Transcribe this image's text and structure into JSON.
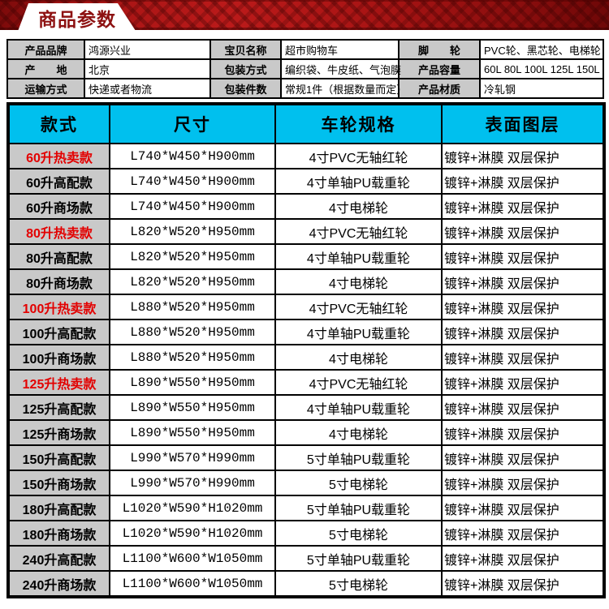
{
  "banner": {
    "title": "商品参数"
  },
  "info_table": {
    "rows": [
      [
        {
          "label": "产品品牌",
          "value": "鸿源兴业"
        },
        {
          "label": "宝贝名称",
          "value": "超市购物车"
        },
        {
          "label": "脚　　轮",
          "value": "PVC轮、黑芯轮、电梯轮"
        }
      ],
      [
        {
          "label": "产　　地",
          "value": "北京"
        },
        {
          "label": "包装方式",
          "value": "编织袋、牛皮纸、气泡膜"
        },
        {
          "label": "产品容量",
          "value": "60L 80L 100L 125L 150L"
        }
      ],
      [
        {
          "label": "运输方式",
          "value": "快递或者物流"
        },
        {
          "label": "包装件数",
          "value": "常规1件（根据数量而定）"
        },
        {
          "label": "产品材质",
          "value": "冷轧钢"
        }
      ]
    ]
  },
  "spec_table": {
    "headers": [
      "款式",
      "尺寸",
      "车轮规格",
      "表面图层"
    ],
    "rows": [
      {
        "style": "60升热卖款",
        "hot": true,
        "size": "L740*W450*H900mm",
        "wheel": "4寸PVC无轴红轮",
        "surface": "镀锌+淋膜 双层保护"
      },
      {
        "style": "60升高配款",
        "hot": false,
        "size": "L740*W450*H900mm",
        "wheel": "4寸单轴PU载重轮",
        "surface": "镀锌+淋膜 双层保护"
      },
      {
        "style": "60升商场款",
        "hot": false,
        "size": "L740*W450*H900mm",
        "wheel": "4寸电梯轮",
        "surface": "镀锌+淋膜 双层保护"
      },
      {
        "style": "80升热卖款",
        "hot": true,
        "size": "L820*W520*H950mm",
        "wheel": "4寸PVC无轴红轮",
        "surface": "镀锌+淋膜 双层保护"
      },
      {
        "style": "80升高配款",
        "hot": false,
        "size": "L820*W520*H950mm",
        "wheel": "4寸单轴PU载重轮",
        "surface": "镀锌+淋膜 双层保护"
      },
      {
        "style": "80升商场款",
        "hot": false,
        "size": "L820*W520*H950mm",
        "wheel": "4寸电梯轮",
        "surface": "镀锌+淋膜 双层保护"
      },
      {
        "style": "100升热卖款",
        "hot": true,
        "size": "L880*W520*H950mm",
        "wheel": "4寸PVC无轴红轮",
        "surface": "镀锌+淋膜 双层保护"
      },
      {
        "style": "100升高配款",
        "hot": false,
        "size": "L880*W520*H950mm",
        "wheel": "4寸单轴PU载重轮",
        "surface": "镀锌+淋膜 双层保护"
      },
      {
        "style": "100升商场款",
        "hot": false,
        "size": "L880*W520*H950mm",
        "wheel": "4寸电梯轮",
        "surface": "镀锌+淋膜 双层保护"
      },
      {
        "style": "125升热卖款",
        "hot": true,
        "size": "L890*W550*H950mm",
        "wheel": "4寸PVC无轴红轮",
        "surface": "镀锌+淋膜 双层保护"
      },
      {
        "style": "125升高配款",
        "hot": false,
        "size": "L890*W550*H950mm",
        "wheel": "4寸单轴PU载重轮",
        "surface": "镀锌+淋膜 双层保护"
      },
      {
        "style": "125升商场款",
        "hot": false,
        "size": "L890*W550*H950mm",
        "wheel": "4寸电梯轮",
        "surface": "镀锌+淋膜 双层保护"
      },
      {
        "style": "150升高配款",
        "hot": false,
        "size": "L990*W570*H990mm",
        "wheel": "5寸单轴PU载重轮",
        "surface": "镀锌+淋膜 双层保护"
      },
      {
        "style": "150升商场款",
        "hot": false,
        "size": "L990*W570*H990mm",
        "wheel": "5寸电梯轮",
        "surface": "镀锌+淋膜 双层保护"
      },
      {
        "style": "180升高配款",
        "hot": false,
        "size": "L1020*W590*H1020mm",
        "wheel": "5寸单轴PU载重轮",
        "surface": "镀锌+淋膜 双层保护"
      },
      {
        "style": "180升商场款",
        "hot": false,
        "size": "L1020*W590*H1020mm",
        "wheel": "5寸电梯轮",
        "surface": "镀锌+淋膜 双层保护"
      },
      {
        "style": "240升高配款",
        "hot": false,
        "size": "L1100*W600*W1050mm",
        "wheel": "5寸单轴PU载重轮",
        "surface": "镀锌+淋膜 双层保护"
      },
      {
        "style": "240升商场款",
        "hot": false,
        "size": "L1100*W600*W1050mm",
        "wheel": "5寸电梯轮",
        "surface": "镀锌+淋膜 双层保护"
      }
    ]
  },
  "colors": {
    "banner_red": "#a41414",
    "banner_dark_red": "#6e0707",
    "title_red": "#8d1111",
    "header_cyan": "#00c0ee",
    "label_gray": "#c9c9c9",
    "hot_red": "#e30000",
    "border_black": "#000000"
  }
}
